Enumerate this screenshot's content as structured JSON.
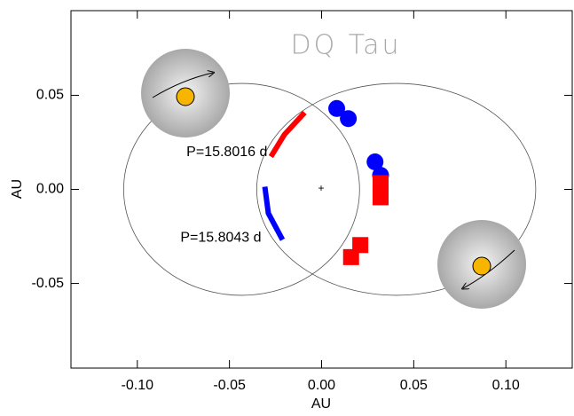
{
  "chart_data": {
    "type": "scatter",
    "title": "DQ Tau",
    "x_label": "AU",
    "y_label": "AU",
    "xlim": [
      -0.136,
      0.136
    ],
    "ylim": [
      -0.095,
      0.095
    ],
    "xticks": [
      {
        "value": -0.1,
        "label": "-0.10"
      },
      -0.05,
      {
        "value": 0,
        "label": "0.00"
      },
      0.05,
      {
        "value": 0.1,
        "label": "0.10"
      }
    ],
    "yticks": [
      -0.05,
      {
        "value": 0,
        "label": "0.00"
      },
      0.05
    ],
    "orbits": [
      {
        "cx": -0.0434,
        "cy": 0,
        "rx": 0.064,
        "ry": 0.0563,
        "color": "#555555"
      },
      {
        "cx": 0.0405,
        "cy": 0,
        "rx": 0.0757,
        "ry": 0.0563,
        "color": "#555555"
      }
    ],
    "arcs": [
      {
        "label": "P=15.8016 d",
        "color": "#ff0000",
        "x": [
          -0.0275,
          -0.0202,
          -0.0092
        ],
        "y": [
          0.0174,
          0.0291,
          0.0408
        ]
      },
      {
        "label": "P=15.8043 d",
        "color": "#0000ff",
        "x": [
          -0.0308,
          -0.0289,
          -0.0212
        ],
        "y": [
          0.0014,
          -0.0127,
          -0.0268
        ]
      }
    ],
    "series": [
      {
        "marker": "circle",
        "color": "#0000ff",
        "x": [
          0.0082,
          0.0145,
          0.029,
          0.032
        ],
        "y": [
          0.043,
          0.0376,
          0.0146,
          0.0075
        ]
      },
      {
        "marker": "square",
        "color": "#ff0000",
        "x": [
          0.032,
          0.032,
          0.021,
          0.016
        ],
        "y": [
          0.0033,
          -0.0042,
          -0.0296,
          -0.036
        ]
      }
    ]
  }
}
